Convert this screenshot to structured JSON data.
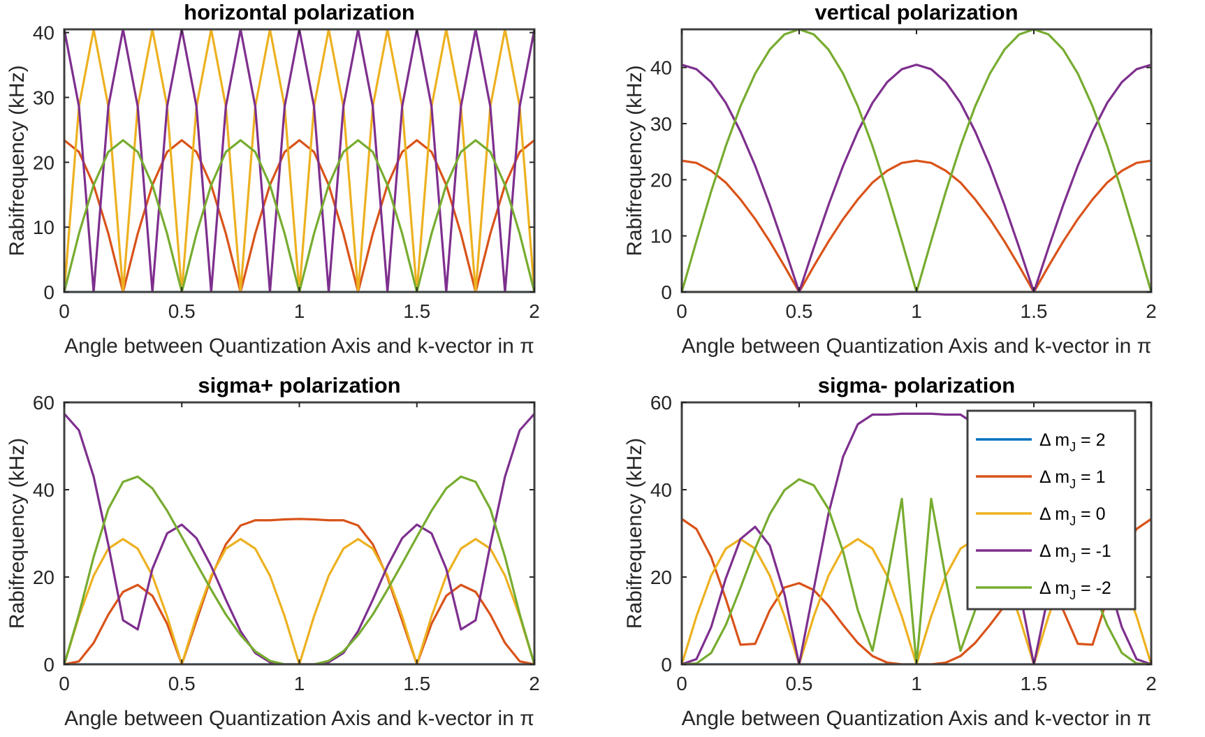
{
  "chart_data": [
    {
      "id": "horizontal",
      "type": "line",
      "title": "horizontal polarization",
      "xlabel": "Angle between Quantization Axis and k-vector in π",
      "ylabel": "Rabifrequency (kHz)",
      "xlim": [
        0,
        2
      ],
      "ylim": [
        0,
        40.5
      ],
      "xticks": [
        0,
        0.5,
        1,
        1.5,
        2
      ],
      "xticklabels": [
        "0",
        "0.5",
        "1",
        "1.5",
        "2"
      ],
      "yticks": [
        0,
        10,
        20,
        30,
        40
      ],
      "yticklabels": [
        "0",
        "10",
        "20",
        "30",
        "40"
      ],
      "x": [
        0,
        0.0625,
        0.125,
        0.1875,
        0.25,
        0.3125,
        0.375,
        0.4375,
        0.5,
        0.5625,
        0.625,
        0.6875,
        0.75,
        0.8125,
        0.875,
        0.9375,
        1,
        1.0625,
        1.125,
        1.1875,
        1.25,
        1.3125,
        1.375,
        1.4375,
        1.5,
        1.5625,
        1.625,
        1.6875,
        1.75,
        1.8125,
        1.875,
        1.9375,
        2
      ],
      "series": [
        {
          "name": "Δ m_J = 2",
          "values": [
            0,
            0,
            0,
            0,
            0,
            0,
            0,
            0,
            0,
            0,
            0,
            0,
            0,
            0,
            0,
            0,
            0,
            0,
            0,
            0,
            0,
            0,
            0,
            0,
            0,
            0,
            0,
            0,
            0,
            0,
            0,
            0,
            0
          ]
        },
        {
          "name": "Δ m_J = 1",
          "values": [
            23.4,
            21.6,
            16.5,
            9.0,
            0,
            9.0,
            16.5,
            21.6,
            23.4,
            21.6,
            16.5,
            9.0,
            0,
            9.0,
            16.5,
            21.6,
            23.4,
            21.6,
            16.5,
            9.0,
            0,
            9.0,
            16.5,
            21.6,
            23.4,
            21.6,
            16.5,
            9.0,
            0,
            9.0,
            16.5,
            21.6,
            23.4
          ]
        },
        {
          "name": "Δ m_J = 0",
          "values": [
            0,
            28.6,
            40.5,
            28.6,
            0,
            28.6,
            40.5,
            28.6,
            0,
            28.6,
            40.5,
            28.6,
            0,
            28.6,
            40.5,
            28.6,
            0,
            28.6,
            40.5,
            28.6,
            0,
            28.6,
            40.5,
            28.6,
            0,
            28.6,
            40.5,
            28.6,
            0,
            28.6,
            40.5,
            28.6,
            0
          ]
        },
        {
          "name": "Δ m_J = -1",
          "values": [
            40.5,
            28.6,
            0,
            28.6,
            40.5,
            28.6,
            0,
            28.6,
            40.5,
            28.6,
            0,
            28.6,
            40.5,
            28.6,
            0,
            28.6,
            40.5,
            28.6,
            0,
            28.6,
            40.5,
            28.6,
            0,
            28.6,
            40.5,
            28.6,
            0,
            28.6,
            40.5,
            28.6,
            0,
            28.6,
            40.5
          ]
        },
        {
          "name": "Δ m_J = -2",
          "values": [
            0,
            9.0,
            16.5,
            21.6,
            23.4,
            21.6,
            16.5,
            9.0,
            0,
            9.0,
            16.5,
            21.6,
            23.4,
            21.6,
            16.5,
            9.0,
            0,
            9.0,
            16.5,
            21.6,
            23.4,
            21.6,
            16.5,
            9.0,
            0,
            9.0,
            16.5,
            21.6,
            23.4,
            21.6,
            16.5,
            9.0,
            0
          ]
        }
      ]
    },
    {
      "id": "vertical",
      "type": "line",
      "title": "vertical polarization",
      "xlabel": "Angle between Quantization Axis and k-vector in π",
      "ylabel": "Rabifrequency (kHz)",
      "xlim": [
        0,
        2
      ],
      "ylim": [
        0,
        46.8
      ],
      "xticks": [
        0,
        0.5,
        1,
        1.5,
        2
      ],
      "xticklabels": [
        "0",
        "0.5",
        "1",
        "1.5",
        "2"
      ],
      "yticks": [
        0,
        10,
        20,
        30,
        40
      ],
      "yticklabels": [
        "0",
        "10",
        "20",
        "30",
        "40"
      ],
      "x": [
        0,
        0.0625,
        0.125,
        0.1875,
        0.25,
        0.3125,
        0.375,
        0.4375,
        0.5,
        0.5625,
        0.625,
        0.6875,
        0.75,
        0.8125,
        0.875,
        0.9375,
        1,
        1.0625,
        1.125,
        1.1875,
        1.25,
        1.3125,
        1.375,
        1.4375,
        1.5,
        1.5625,
        1.625,
        1.6875,
        1.75,
        1.8125,
        1.875,
        1.9375,
        2
      ],
      "series": [
        {
          "name": "Δ m_J = 2",
          "values": [
            0,
            0,
            0,
            0,
            0,
            0,
            0,
            0,
            0,
            0,
            0,
            0,
            0,
            0,
            0,
            0,
            0,
            0,
            0,
            0,
            0,
            0,
            0,
            0,
            0,
            0,
            0,
            0,
            0,
            0,
            0,
            0,
            0
          ]
        },
        {
          "name": "Δ m_J = 1",
          "values": [
            23.4,
            23.0,
            21.6,
            19.5,
            16.5,
            13.0,
            9.0,
            4.6,
            0,
            4.6,
            9.0,
            13.0,
            16.5,
            19.5,
            21.6,
            23.0,
            23.4,
            23.0,
            21.6,
            19.5,
            16.5,
            13.0,
            9.0,
            4.6,
            0,
            4.6,
            9.0,
            13.0,
            16.5,
            19.5,
            21.6,
            23.0,
            23.4
          ]
        },
        {
          "name": "Δ m_J = 0",
          "values": [
            0,
            0,
            0,
            0,
            0,
            0,
            0,
            0,
            0,
            0,
            0,
            0,
            0,
            0,
            0,
            0,
            0,
            0,
            0,
            0,
            0,
            0,
            0,
            0,
            0,
            0,
            0,
            0,
            0,
            0,
            0,
            0,
            0
          ]
        },
        {
          "name": "Δ m_J = -1",
          "values": [
            40.5,
            39.7,
            37.4,
            33.7,
            28.6,
            22.5,
            15.5,
            7.9,
            0,
            7.9,
            15.5,
            22.5,
            28.6,
            33.7,
            37.4,
            39.7,
            40.5,
            39.7,
            37.4,
            33.7,
            28.6,
            22.5,
            15.5,
            7.9,
            0,
            7.9,
            15.5,
            22.5,
            28.6,
            33.7,
            37.4,
            39.7,
            40.5
          ]
        },
        {
          "name": "Δ m_J = -2",
          "values": [
            0,
            9.1,
            17.9,
            26.0,
            33.1,
            38.9,
            43.2,
            45.9,
            46.8,
            45.9,
            43.2,
            38.9,
            33.1,
            26.0,
            17.9,
            9.1,
            0,
            9.1,
            17.9,
            26.0,
            33.1,
            38.9,
            43.2,
            45.9,
            46.8,
            45.9,
            43.2,
            38.9,
            33.1,
            26.0,
            17.9,
            9.1,
            0
          ]
        }
      ]
    },
    {
      "id": "sigma_plus",
      "type": "line",
      "title": "sigma+ polarization",
      "xlabel": "Angle between Quantization Axis and k-vector in π",
      "ylabel": "Rabifrequency (kHz)",
      "xlim": [
        0,
        2
      ],
      "ylim": [
        0,
        60
      ],
      "xticks": [
        0,
        0.5,
        1,
        1.5,
        2
      ],
      "xticklabels": [
        "0",
        "0.5",
        "1",
        "1.5",
        "2"
      ],
      "yticks": [
        0,
        20,
        40,
        60
      ],
      "yticklabels": [
        "0",
        "20",
        "40",
        "60"
      ],
      "x": [
        0,
        0.0625,
        0.125,
        0.1875,
        0.25,
        0.3125,
        0.375,
        0.4375,
        0.5,
        0.5625,
        0.625,
        0.6875,
        0.75,
        0.8125,
        0.875,
        0.9375,
        1,
        1.0625,
        1.125,
        1.1875,
        1.25,
        1.3125,
        1.375,
        1.4375,
        1.5,
        1.5625,
        1.625,
        1.6875,
        1.75,
        1.8125,
        1.875,
        1.9375,
        2
      ],
      "series": [
        {
          "name": "Δ m_J = 2",
          "values": [
            0,
            0,
            0,
            0,
            0,
            0,
            0,
            0,
            0,
            0,
            0,
            0,
            0,
            0,
            0,
            0,
            0,
            0,
            0,
            0,
            0,
            0,
            0,
            0,
            0,
            0,
            0,
            0,
            0,
            0,
            0,
            0,
            0
          ]
        },
        {
          "name": "Δ m_J = 1",
          "values": [
            0,
            0.7,
            4.9,
            11.4,
            16.6,
            18.2,
            15.7,
            9.3,
            0,
            10.0,
            19.9,
            27.5,
            31.8,
            33.0,
            33.0,
            33.2,
            33.3,
            33.2,
            33.0,
            33.0,
            31.8,
            27.5,
            19.9,
            10.0,
            0,
            9.3,
            15.7,
            18.2,
            16.6,
            11.4,
            4.9,
            0.7,
            0
          ]
        },
        {
          "name": "Δ m_J = 0",
          "values": [
            0,
            11.0,
            20.3,
            26.5,
            28.7,
            26.5,
            20.3,
            11.0,
            0,
            11.0,
            20.3,
            26.5,
            28.7,
            26.5,
            20.3,
            11.0,
            0,
            11.0,
            20.3,
            26.5,
            28.7,
            26.5,
            20.3,
            11.0,
            0,
            11.0,
            20.3,
            26.5,
            28.7,
            26.5,
            20.3,
            11.0,
            0
          ]
        },
        {
          "name": "Δ m_J = -1",
          "values": [
            57.4,
            53.6,
            43.0,
            27.4,
            10.1,
            8.0,
            21.9,
            30.0,
            32.0,
            28.9,
            22.5,
            14.8,
            7.6,
            2.6,
            0.5,
            0,
            0,
            0,
            0.5,
            2.6,
            7.6,
            14.8,
            22.5,
            28.9,
            32.0,
            30.0,
            21.9,
            8.0,
            10.1,
            27.4,
            43.0,
            53.6,
            57.4
          ]
        },
        {
          "name": "Δ m_J = -2",
          "values": [
            0,
            11.5,
            24.6,
            35.6,
            41.8,
            43.0,
            40.3,
            35.2,
            29.2,
            23.1,
            17.1,
            11.4,
            6.7,
            3.0,
            0.8,
            0,
            0,
            0,
            0.8,
            3.0,
            6.7,
            11.4,
            17.1,
            23.1,
            29.2,
            35.2,
            40.3,
            43.0,
            41.8,
            35.6,
            24.6,
            11.5,
            0
          ]
        }
      ]
    },
    {
      "id": "sigma_minus",
      "type": "line",
      "title": "sigma- polarization",
      "xlabel": "Angle between Quantization Axis and k-vector in π",
      "ylabel": "Rabifrequency (kHz)",
      "xlim": [
        0,
        2
      ],
      "ylim": [
        0,
        60
      ],
      "xticks": [
        0,
        0.5,
        1,
        1.5,
        2
      ],
      "xticklabels": [
        "0",
        "0.5",
        "1",
        "1.5",
        "2"
      ],
      "yticks": [
        0,
        20,
        40,
        60
      ],
      "yticklabels": [
        "0",
        "20",
        "40",
        "60"
      ],
      "legend": {
        "location": "top-right",
        "entries": [
          {
            "label": "Δ m",
            "sub": "J",
            "suffix": " = 2"
          },
          {
            "label": "Δ m",
            "sub": "J",
            "suffix": " = 1"
          },
          {
            "label": "Δ m",
            "sub": "J",
            "suffix": " = 0"
          },
          {
            "label": "Δ m",
            "sub": "J",
            "suffix": " = -1"
          },
          {
            "label": "Δ m",
            "sub": "J",
            "suffix": " = -2"
          }
        ]
      },
      "x": [
        0,
        0.0625,
        0.125,
        0.1875,
        0.25,
        0.3125,
        0.375,
        0.4375,
        0.5,
        0.5625,
        0.625,
        0.6875,
        0.75,
        0.8125,
        0.875,
        0.9375,
        1,
        1.0625,
        1.125,
        1.1875,
        1.25,
        1.3125,
        1.375,
        1.4375,
        1.5,
        1.5625,
        1.625,
        1.6875,
        1.75,
        1.8125,
        1.875,
        1.9375,
        2
      ],
      "series": [
        {
          "name": "Δ m_J = 2",
          "values": [
            0,
            0,
            0,
            0,
            0,
            0,
            0,
            0,
            0,
            0,
            0,
            0,
            0,
            0,
            0,
            0,
            0,
            0,
            0,
            0,
            0,
            0,
            0,
            0,
            0,
            0,
            0,
            0,
            0,
            0,
            0,
            0,
            0
          ]
        },
        {
          "name": "Δ m_J = 1",
          "values": [
            33.3,
            31.0,
            24.6,
            15.0,
            4.5,
            4.7,
            12.4,
            17.6,
            18.6,
            17.0,
            13.4,
            9.0,
            4.9,
            1.9,
            0.4,
            0,
            0,
            0,
            0.4,
            1.9,
            4.9,
            9.0,
            13.4,
            17.0,
            18.6,
            17.6,
            12.4,
            4.7,
            4.5,
            15.0,
            24.6,
            31.0,
            33.3
          ]
        },
        {
          "name": "Δ m_J = 0",
          "values": [
            0,
            11.0,
            20.3,
            26.5,
            28.7,
            26.5,
            20.3,
            11.0,
            0,
            11.0,
            20.3,
            26.5,
            28.7,
            26.5,
            20.3,
            11.0,
            0,
            11.0,
            20.3,
            26.5,
            28.7,
            26.5,
            20.3,
            11.0,
            0,
            11.0,
            20.3,
            26.5,
            28.7,
            26.5,
            20.3,
            11.0,
            0
          ]
        },
        {
          "name": "Δ m_J = -1",
          "values": [
            0,
            1.2,
            8.5,
            19.7,
            28.7,
            31.5,
            27.2,
            16.1,
            0,
            17.3,
            34.5,
            47.6,
            55.0,
            57.2,
            57.2,
            57.4,
            57.4,
            57.4,
            57.2,
            57.2,
            55.0,
            47.6,
            34.5,
            17.3,
            0,
            16.1,
            27.2,
            31.5,
            28.7,
            19.7,
            8.5,
            1.2,
            0
          ]
        },
        {
          "name": "Δ m_J = -2",
          "values": [
            0,
            0.2,
            2.6,
            9.0,
            17.5,
            26.5,
            34.4,
            39.9,
            42.4,
            41.0,
            35.6,
            25.8,
            12.4,
            3.1,
            19.5,
            37.9,
            0,
            37.9,
            19.5,
            3.1,
            12.4,
            25.8,
            35.6,
            41.0,
            42.4,
            39.9,
            34.4,
            26.5,
            17.5,
            9.0,
            2.6,
            0.2,
            0
          ]
        }
      ]
    }
  ],
  "colors": {
    "series": [
      "#0072BD",
      "#D95319",
      "#EDB120",
      "#7E2F8E",
      "#77AC30"
    ],
    "axes": "#262626",
    "box": "#404040"
  }
}
